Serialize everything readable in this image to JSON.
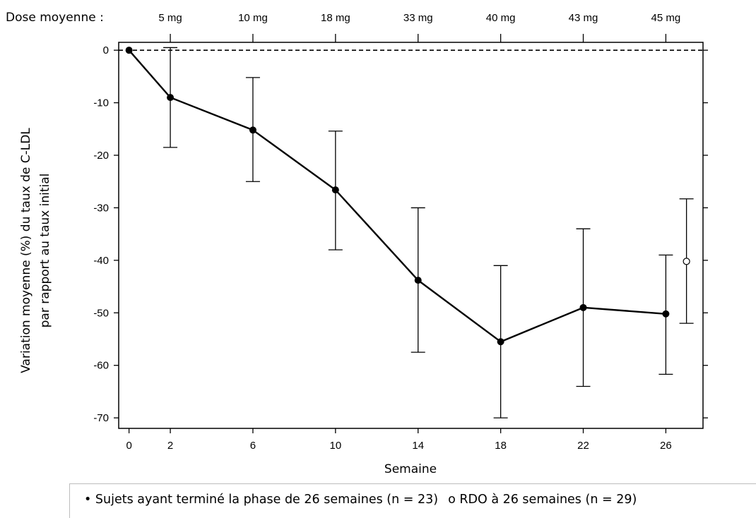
{
  "chart_data": {
    "type": "line",
    "dose_caption": "Dose moyenne :",
    "doses": [
      "5 mg",
      "10 mg",
      "18 mg",
      "33 mg",
      "40 mg",
      "43 mg",
      "45 mg"
    ],
    "dose_weeks": [
      2,
      6,
      10,
      14,
      18,
      22,
      26
    ],
    "xlabel": "Semaine",
    "ylabel_line1": "Variation moyenne (%) du taux de C-LDL",
    "ylabel_line2": "par rapport au taux initial",
    "x_ticks": [
      0,
      2,
      6,
      10,
      14,
      18,
      22,
      26
    ],
    "y_ticks": [
      0,
      -10,
      -20,
      -30,
      -40,
      -50,
      -60,
      -70
    ],
    "xlim": [
      -0.5,
      27.8
    ],
    "ylim": [
      -72,
      1.5
    ],
    "reference_line": 0,
    "series": [
      {
        "name": "Sujets ayant terminé la phase de 26 semaines (n = 23)",
        "marker": "filled-circle",
        "x": [
          0,
          2,
          6,
          10,
          14,
          18,
          22,
          26
        ],
        "y": [
          0,
          -9,
          -15.2,
          -26.6,
          -43.8,
          -55.5,
          -49,
          -50.2
        ],
        "err_low": [
          null,
          -18.5,
          -25,
          -38,
          -57.5,
          -70,
          -64,
          -61.7
        ],
        "err_high": [
          null,
          0.5,
          -5.2,
          -15.4,
          -30,
          -41,
          -34,
          -39
        ]
      },
      {
        "name": "RDO à 26 semaines (n = 29)",
        "marker": "open-circle",
        "x": [
          27
        ],
        "y": [
          -40.2
        ],
        "err_low": [
          -52
        ],
        "err_high": [
          -28.3
        ]
      }
    ]
  },
  "legend": {
    "item1": "• Sujets ayant terminé la phase de 26 semaines (n = 23)",
    "item2": "ο RDO à 26 semaines (n = 29)"
  },
  "colors": {
    "line": "#000000",
    "background": "#ffffff"
  }
}
